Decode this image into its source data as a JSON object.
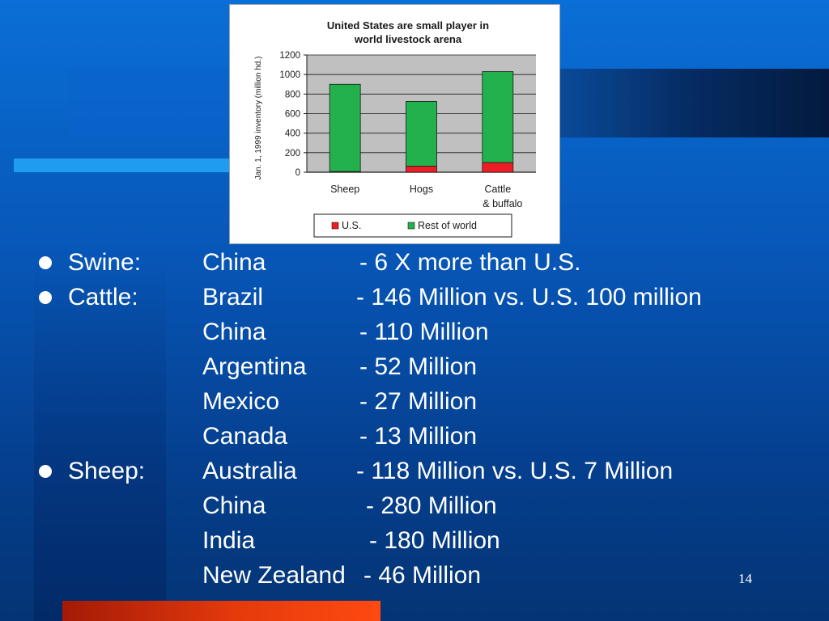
{
  "chart_data": {
    "type": "bar",
    "stacked": true,
    "title": "United States are small player in world livestock arena",
    "ylabel": "Jan. 1, 1999 inventory (million hd.)",
    "xlabel": "",
    "categories": [
      "Sheep",
      "Hogs",
      "Cattle & buffalo"
    ],
    "ylim": [
      0,
      1200
    ],
    "yticks": [
      "0",
      "200",
      "400",
      "600",
      "800",
      "1000",
      "1200"
    ],
    "grid": true,
    "legend_placement": "bottom",
    "series": [
      {
        "name": "U.S.",
        "color": "#ee1c24",
        "values": [
          7,
          62,
          99
        ]
      },
      {
        "name": "Rest of world",
        "color": "#22b14c",
        "values": [
          893,
          663,
          931
        ]
      }
    ]
  },
  "bullets": [
    {
      "category": "Swine:",
      "bullet": true,
      "country": "China",
      "dash": "-  6 X more than U.S."
    },
    {
      "category": "Cattle:",
      "bullet": true,
      "country": "Brazil",
      "dash": "-  146 Million vs. U.S. 100 million"
    },
    {
      "category": "",
      "bullet": false,
      "country": "China",
      "dash": "-  110 Million"
    },
    {
      "category": "",
      "bullet": false,
      "country": "Argentina",
      "dash": "-  52 Million"
    },
    {
      "category": "",
      "bullet": false,
      "country": "Mexico",
      "dash": "-  27 Million"
    },
    {
      "category": "",
      "bullet": false,
      "country": "Canada",
      "dash": "-  13 Million"
    },
    {
      "category": "Sheep:",
      "bullet": true,
      "country": "Australia",
      "dash": "-  118 Million vs. U.S. 7 Million"
    },
    {
      "category": "",
      "bullet": false,
      "country": "China",
      "dash": "-  280 Million"
    },
    {
      "category": "",
      "bullet": false,
      "country": "India",
      "dash": "-  180 Million"
    },
    {
      "category": "",
      "bullet": false,
      "country": "New Zealand",
      "dash": "-  46 Million"
    }
  ],
  "slide": {
    "page_number": "14"
  }
}
